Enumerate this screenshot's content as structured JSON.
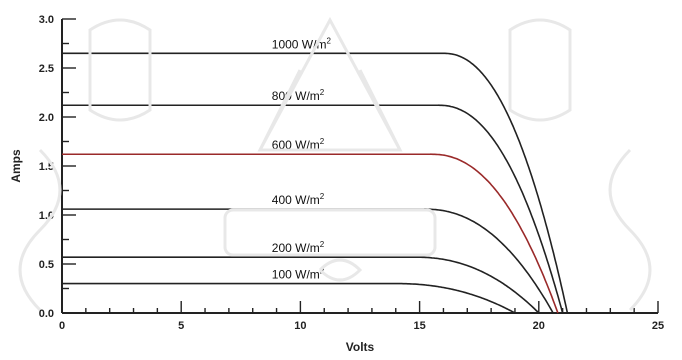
{
  "chart_data": {
    "type": "line",
    "title": "",
    "xlabel": "Volts",
    "ylabel": "Amps",
    "xlim": [
      0,
      25
    ],
    "ylim": [
      0,
      3.0
    ],
    "xticks": [
      "0",
      "5",
      "10",
      "15",
      "20",
      "25"
    ],
    "yticks": [
      "0.0",
      "0.5",
      "1.0",
      "1.5",
      "2.0",
      "2.5",
      "3.0"
    ],
    "label_unit": "W/m",
    "label_sup": "2",
    "series": [
      {
        "name": "1000 W/m2",
        "label_value": "1000",
        "isc": 2.65,
        "voc": 21.2,
        "knee": 16.0,
        "highlight": false
      },
      {
        "name": "800 W/m2",
        "label_value": "800",
        "isc": 2.12,
        "voc": 21.0,
        "knee": 15.8,
        "highlight": false
      },
      {
        "name": "600 W/m2",
        "label_value": "600",
        "isc": 1.62,
        "voc": 20.8,
        "knee": 15.5,
        "highlight": true
      },
      {
        "name": "400 W/m2",
        "label_value": "400",
        "isc": 1.06,
        "voc": 20.6,
        "knee": 15.2,
        "highlight": false
      },
      {
        "name": "200 W/m2",
        "label_value": "200",
        "isc": 0.57,
        "voc": 20.0,
        "knee": 14.8,
        "highlight": false
      },
      {
        "name": "100 W/m2",
        "label_value": "100",
        "isc": 0.3,
        "voc": 19.0,
        "knee": 14.0,
        "highlight": false
      }
    ]
  }
}
